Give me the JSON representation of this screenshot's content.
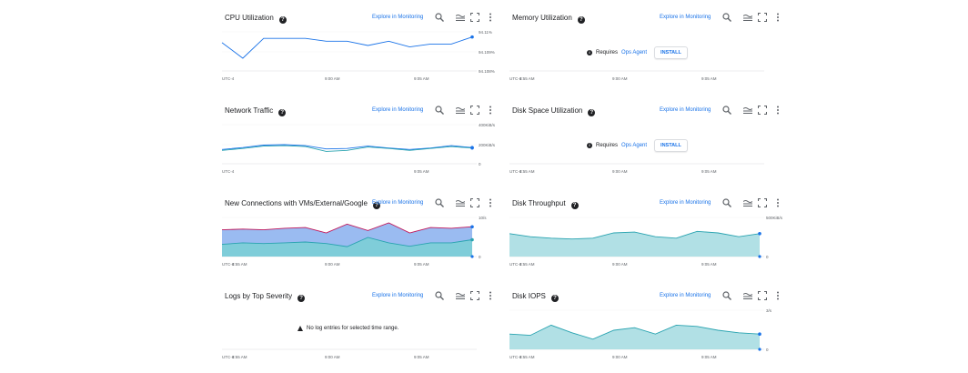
{
  "explore_label": "Explore in Monitoring",
  "colors": {
    "accent": "#1a73e8",
    "teal": "#7ccfd6",
    "teal_line": "#29a3b0",
    "blue_fill": "#8fb4ef",
    "magenta": "#c2185b"
  },
  "cards": [
    {
      "id": "cpu",
      "title": "CPU Utilization",
      "x_labels": [
        "UTC-4",
        "9:00 AM",
        "9:05 AM"
      ],
      "y_labels": [
        "94.11%",
        "94.109%",
        "94.108%"
      ],
      "chart_data": {
        "type": "line",
        "series": [
          {
            "values": [
              94.1105,
              94.1094,
              94.1108,
              94.1108,
              94.1108,
              94.1106,
              94.1106,
              94.1103,
              94.1106,
              94.1102,
              94.1104,
              94.1104,
              94.1109
            ]
          }
        ]
      }
    },
    {
      "id": "memory",
      "title": "Memory Utilization",
      "x_labels": [
        "UTC-4",
        "8:55 AM",
        "9:00 AM",
        "9:05 AM"
      ],
      "message": {
        "text": "Requires",
        "link": "Ops Agent",
        "button": "INSTALL"
      }
    },
    {
      "id": "network",
      "title": "Network Traffic",
      "x_labels": [
        "UTC-4",
        "9:05 AM"
      ],
      "y_labels": [
        "400KiB/s",
        "200KiB/s",
        "0"
      ],
      "chart_data": {
        "type": "line",
        "series": [
          {
            "values": [
              150,
              170,
              195,
              200,
              190,
              155,
              160,
              185,
              165,
              150,
              165,
              190,
              170
            ]
          },
          {
            "values": [
              140,
              160,
              185,
              190,
              180,
              130,
              140,
              175,
              160,
              140,
              160,
              180,
              165
            ]
          }
        ]
      }
    },
    {
      "id": "disk_space",
      "title": "Disk Space Utilization",
      "x_labels": [
        "UTC-4",
        "8:55 AM",
        "9:00 AM",
        "9:05 AM"
      ],
      "message": {
        "text": "Requires",
        "link": "Ops Agent",
        "button": "INSTALL"
      }
    },
    {
      "id": "new_conn",
      "title": "New Connections with VMs/External/Google",
      "x_labels": [
        "UTC-4",
        "8:55 AM",
        "9:00 AM",
        "9:05 AM"
      ],
      "y_labels": [
        "10/s",
        "0"
      ],
      "chart_data": {
        "type": "area",
        "series": [
          {
            "values": [
              3.2,
              3.6,
              3.4,
              3.6,
              3.8,
              3.4,
              2.6,
              5.0,
              3.6,
              2.7,
              3.6,
              3.6,
              4.4
            ]
          },
          {
            "values": [
              7.0,
              7.2,
              7.0,
              7.4,
              7.6,
              6.2,
              8.5,
              6.8,
              8.8,
              6.2,
              7.6,
              7.4,
              7.8
            ]
          }
        ]
      }
    },
    {
      "id": "disk_throughput",
      "title": "Disk Throughput",
      "x_labels": [
        "UTC-4",
        "8:55 AM",
        "9:00 AM",
        "9:05 AM"
      ],
      "y_labels": [
        "500KiB/s",
        "0"
      ],
      "chart_data": {
        "type": "area",
        "series": [
          {
            "values": [
              300,
              260,
              240,
              230,
              240,
              310,
              320,
              260,
              240,
              330,
              310,
              260,
              300
            ]
          }
        ]
      }
    },
    {
      "id": "logs",
      "title": "Logs by Top Severity",
      "x_labels": [
        "UTC-4",
        "8:55 AM",
        "9:00 AM",
        "9:05 AM"
      ],
      "message": {
        "text": "No log entries for selected time range."
      }
    },
    {
      "id": "disk_iops",
      "title": "Disk IOPS",
      "x_labels": [
        "UTC-4",
        "8:55 AM",
        "9:00 AM",
        "9:05 AM"
      ],
      "y_labels": [
        "3/s",
        "0"
      ],
      "chart_data": {
        "type": "area",
        "series": [
          {
            "values": [
              1.2,
              1.1,
              1.9,
              1.3,
              0.8,
              1.5,
              1.7,
              1.2,
              1.9,
              1.8,
              1.5,
              1.3,
              1.2
            ]
          }
        ]
      }
    }
  ]
}
